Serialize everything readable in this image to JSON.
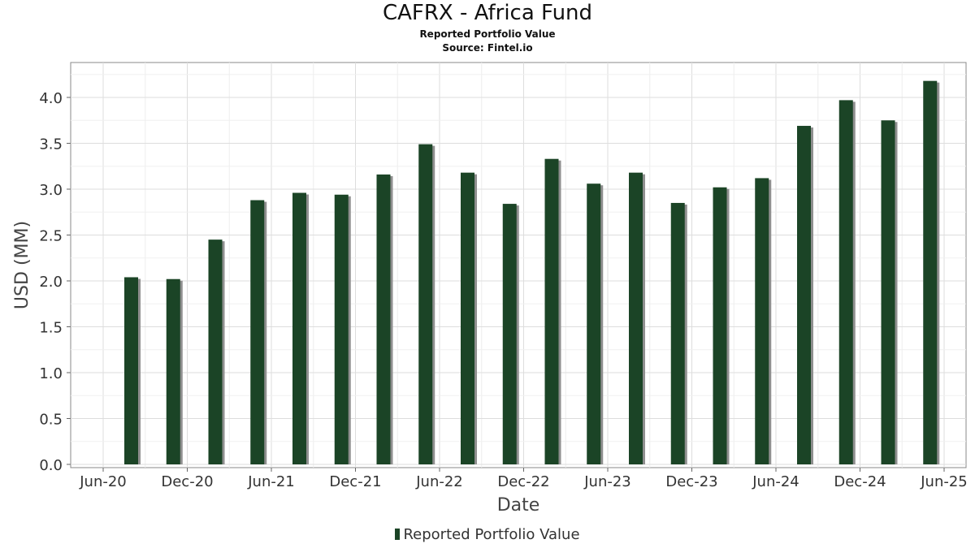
{
  "chart_data": {
    "type": "bar",
    "title": "CAFRX - Africa Fund",
    "subtitle": "Reported Portfolio Value",
    "source": "Source: Fintel.io",
    "xlabel": "Date",
    "ylabel": "USD (MM)",
    "x_ticks": [
      "Jun-20",
      "Dec-20",
      "Jun-21",
      "Dec-21",
      "Jun-22",
      "Dec-22",
      "Jun-23",
      "Dec-23",
      "Jun-24",
      "Dec-24",
      "Jun-25"
    ],
    "y_ticks": [
      "0.0",
      "0.5",
      "1.0",
      "1.5",
      "2.0",
      "2.5",
      "3.0",
      "3.5",
      "4.0"
    ],
    "ylim": [
      0,
      4.4
    ],
    "grid": true,
    "legend_position": "bottom",
    "series": [
      {
        "name": "Reported Portfolio Value",
        "color": "#1b4426",
        "x": [
          "2020-08",
          "2020-11",
          "2021-02",
          "2021-05",
          "2021-08",
          "2021-11",
          "2022-02",
          "2022-05",
          "2022-08",
          "2022-11",
          "2023-02",
          "2023-05",
          "2023-08",
          "2023-11",
          "2024-02",
          "2024-05",
          "2024-08",
          "2024-11",
          "2025-02",
          "2025-05"
        ],
        "values": [
          2.04,
          2.02,
          2.45,
          2.88,
          2.96,
          2.94,
          3.16,
          3.49,
          3.18,
          2.84,
          3.33,
          3.06,
          3.18,
          2.85,
          3.02,
          3.12,
          3.69,
          3.97,
          3.75,
          4.18
        ]
      }
    ]
  }
}
